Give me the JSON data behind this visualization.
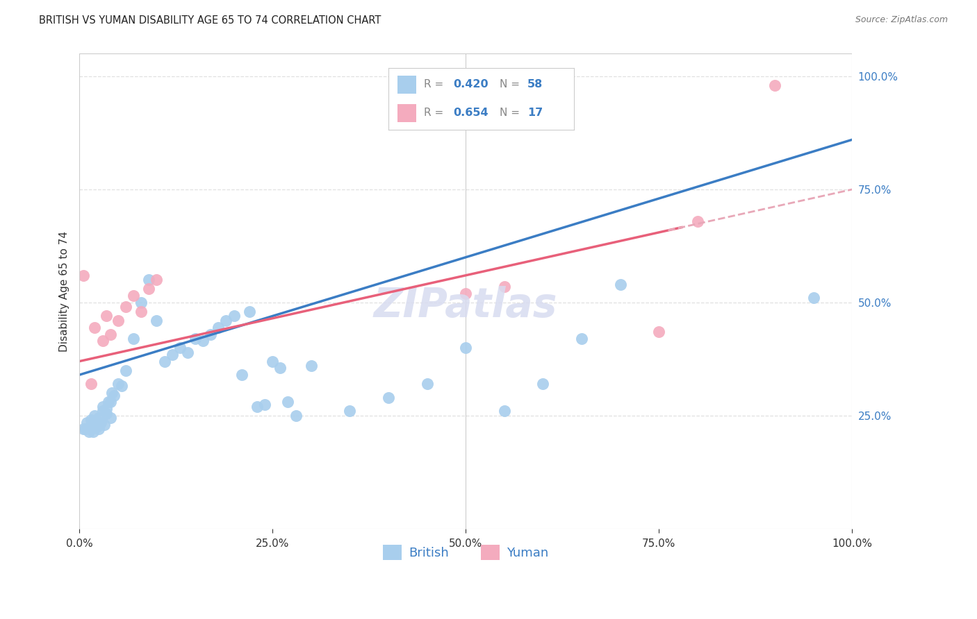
{
  "title": "BRITISH VS YUMAN DISABILITY AGE 65 TO 74 CORRELATION CHART",
  "source": "Source: ZipAtlas.com",
  "ylabel": "Disability Age 65 to 74",
  "r_british": "0.420",
  "n_british": "58",
  "r_yuman": "0.654",
  "n_yuman": "17",
  "blue_scatter_color": "#A8CEED",
  "pink_scatter_color": "#F4ABBE",
  "blue_line_color": "#3B7DC4",
  "pink_line_color": "#E8607A",
  "pink_dashed_color": "#E8A8B8",
  "grid_color": "#E0E0E0",
  "title_color": "#222222",
  "source_color": "#777777",
  "axis_tick_color": "#3B7DC4",
  "watermark_color": "#D8DCF0",
  "legend_text_color": "#3B7DC4",
  "british_x": [
    0.5,
    0.8,
    1.0,
    1.2,
    1.5,
    1.5,
    1.8,
    2.0,
    2.0,
    2.2,
    2.5,
    2.5,
    2.8,
    3.0,
    3.0,
    3.2,
    3.5,
    3.5,
    3.8,
    4.0,
    4.0,
    4.2,
    4.5,
    5.0,
    5.5,
    6.0,
    7.0,
    8.0,
    9.0,
    10.0,
    11.0,
    12.0,
    13.0,
    14.0,
    15.0,
    16.0,
    17.0,
    18.0,
    19.0,
    20.0,
    21.0,
    22.0,
    23.0,
    24.0,
    25.0,
    26.0,
    27.0,
    28.0,
    30.0,
    35.0,
    40.0,
    45.0,
    50.0,
    55.0,
    60.0,
    65.0,
    70.0,
    95.0
  ],
  "british_y": [
    22.0,
    22.0,
    23.5,
    21.5,
    24.0,
    22.0,
    21.5,
    25.0,
    23.0,
    22.5,
    22.0,
    24.5,
    23.5,
    26.0,
    27.0,
    23.0,
    25.5,
    26.5,
    28.0,
    24.5,
    28.0,
    30.0,
    29.5,
    32.0,
    31.5,
    35.0,
    42.0,
    50.0,
    55.0,
    46.0,
    37.0,
    38.5,
    40.0,
    39.0,
    42.0,
    41.5,
    43.0,
    44.5,
    46.0,
    47.0,
    34.0,
    48.0,
    27.0,
    27.5,
    37.0,
    35.5,
    28.0,
    25.0,
    36.0,
    26.0,
    29.0,
    32.0,
    40.0,
    26.0,
    32.0,
    42.0,
    54.0,
    51.0
  ],
  "yuman_x": [
    0.5,
    1.5,
    2.0,
    3.0,
    3.5,
    4.0,
    5.0,
    6.0,
    7.0,
    8.0,
    9.0,
    10.0,
    50.0,
    55.0,
    75.0,
    80.0,
    90.0
  ],
  "yuman_y": [
    56.0,
    32.0,
    44.5,
    41.5,
    47.0,
    43.0,
    46.0,
    49.0,
    51.5,
    48.0,
    53.0,
    55.0,
    52.0,
    53.5,
    43.5,
    68.0,
    98.0
  ],
  "xlim": [
    0,
    100
  ],
  "ylim": [
    0,
    105
  ],
  "xticks": [
    0,
    25,
    50,
    75,
    100
  ],
  "yticks_right": [
    25,
    50,
    75,
    100
  ],
  "figsize": [
    14.06,
    8.92
  ],
  "dpi": 100,
  "blue_intercept": 34.0,
  "blue_slope": 0.52,
  "pink_intercept": 37.0,
  "pink_slope": 0.38
}
